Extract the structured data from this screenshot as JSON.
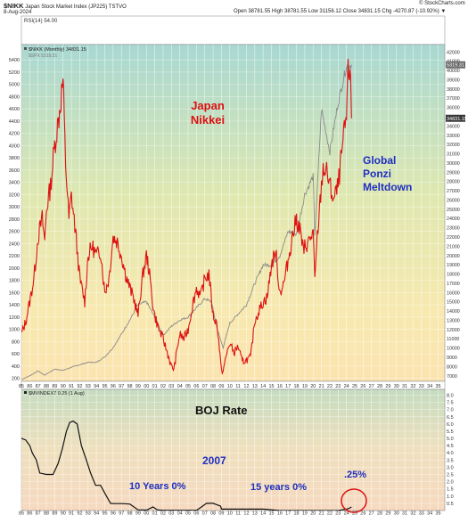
{
  "header": {
    "symbol": "$NIKK",
    "name": "Japan Stock Market Index (JP225)  TSTVO",
    "date": "8-Aug-2024",
    "ohlc": "Open 38781.55  High 38781.55  Low 31156.12  Close 34831.15  Chg -4270.87 (-10.92%) ▼",
    "watermark": "© StockCharts.com",
    "rsi_label": "RSI(14) 54.00"
  },
  "annotations": {
    "japan": "Japan",
    "nikkei": "Nikkei",
    "global": "Global",
    "ponzi": "Ponzi",
    "meltdown": "Meltdown",
    "boj_rate": "BOJ Rate",
    "year_2007": "2007",
    "ten_years": "10 Years 0%",
    "fifteen_years": "15 years 0%",
    "pct25": ".25%"
  },
  "colors": {
    "nikkei_line": "#dd1111",
    "spx_line": "#8a8a8a",
    "boj_line": "#111111",
    "annotation_red": "#dd1111",
    "annotation_blue": "#1f2fbf",
    "circle": "#dd1111"
  },
  "chart_data": [
    {
      "type": "line",
      "legend": [
        "$NIKK (Monthly) 34831.15",
        "$SPX 5319.31"
      ],
      "x_ticks": [
        "85",
        "86",
        "87",
        "88",
        "89",
        "90",
        "91",
        "92",
        "93",
        "94",
        "95",
        "96",
        "97",
        "98",
        "99",
        "00",
        "01",
        "02",
        "03",
        "04",
        "05",
        "06",
        "07",
        "08",
        "09",
        "10",
        "11",
        "12",
        "13",
        "14",
        "15",
        "16",
        "17",
        "18",
        "19",
        "20",
        "21",
        "22",
        "23",
        "24",
        "25",
        "26",
        "27",
        "28",
        "29",
        "30",
        "31",
        "32",
        "33",
        "34",
        "35"
      ],
      "x_range": [
        1985,
        2035.8
      ],
      "left_axis": {
        "ticks": [
          200,
          400,
          600,
          800,
          1000,
          1200,
          1400,
          1600,
          1800,
          2000,
          2200,
          2400,
          2600,
          2800,
          3000,
          3200,
          3400,
          3600,
          3800,
          4000,
          4200,
          4400,
          4600,
          4800,
          5000,
          5200,
          5400
        ],
        "range": [
          150,
          5650
        ]
      },
      "right_axis": {
        "ticks": [
          7000,
          8000,
          9000,
          10000,
          11000,
          12000,
          13000,
          14000,
          15000,
          16000,
          17000,
          18000,
          19000,
          20000,
          21000,
          22000,
          23000,
          24000,
          25000,
          26000,
          27000,
          28000,
          29000,
          30000,
          31000,
          32000,
          33000,
          34000,
          35000,
          36000,
          37000,
          38000,
          39000,
          40000,
          41000,
          42000
        ],
        "range": [
          6400,
          42800
        ],
        "last_value_labels": [
          "5319.31",
          "34831.15"
        ]
      },
      "series": [
        {
          "name": "$NIKK",
          "axis": "right",
          "x": [
            1985,
            1985.5,
            1986,
            1986.5,
            1987,
            1987.5,
            1987.8,
            1988,
            1988.5,
            1989,
            1989.5,
            1989.99,
            1990.3,
            1990.7,
            1991,
            1991.5,
            1992,
            1992.6,
            1993,
            1993.5,
            1994,
            1994.5,
            1995,
            1995.5,
            1996,
            1996.5,
            1997,
            1997.5,
            1998,
            1998.5,
            1999,
            1999.5,
            2000,
            2000.3,
            2000.8,
            2001,
            2001.5,
            2002,
            2002.5,
            2003,
            2003.3,
            2003.8,
            2004,
            2004.5,
            2005,
            2005.5,
            2006,
            2006.5,
            2007,
            2007.5,
            2008,
            2008.5,
            2009,
            2009.2,
            2009.8,
            2010,
            2010.5,
            2011,
            2011.5,
            2012,
            2012.5,
            2013,
            2013.5,
            2014,
            2014.5,
            2015,
            2015.5,
            2016,
            2016.5,
            2017,
            2017.5,
            2018,
            2018.5,
            2018.9,
            2019,
            2019.5,
            2020,
            2020.2,
            2020.5,
            2021,
            2021.2,
            2021.7,
            2022,
            2022.5,
            2023,
            2023.5,
            2024,
            2024.2,
            2024.5,
            2024.6
          ],
          "y": [
            11500,
            12800,
            15000,
            17500,
            22000,
            24000,
            21500,
            25000,
            27500,
            32000,
            35000,
            38957,
            30000,
            24000,
            26500,
            22500,
            17500,
            15000,
            20000,
            21000,
            20000,
            20500,
            16000,
            17500,
            22000,
            21500,
            20000,
            18000,
            16500,
            15300,
            13500,
            17500,
            20000,
            18500,
            14500,
            13500,
            12000,
            11000,
            9500,
            8000,
            7700,
            10500,
            11500,
            11000,
            12000,
            14500,
            16500,
            15500,
            17500,
            18000,
            13500,
            12500,
            7500,
            7600,
            10000,
            10500,
            9500,
            10200,
            8500,
            8700,
            9000,
            13000,
            14000,
            15000,
            15500,
            19000,
            20500,
            16000,
            17000,
            19500,
            22000,
            24000,
            22500,
            20000,
            21000,
            21500,
            22500,
            17000,
            22000,
            27500,
            29500,
            28800,
            27500,
            26000,
            27500,
            31500,
            35000,
            39500,
            40500,
            34831
          ]
        },
        {
          "name": "$SPX",
          "axis": "left",
          "x": [
            1985,
            1986,
            1987,
            1987.8,
            1988,
            1989,
            1990,
            1991,
            1992,
            1993,
            1994,
            1995,
            1996,
            1997,
            1998,
            1999,
            2000,
            2001,
            2002,
            2003,
            2004,
            2005,
            2006,
            2007,
            2007.8,
            2008.5,
            2009.2,
            2010,
            2011,
            2012,
            2013,
            2014,
            2015,
            2016,
            2017,
            2018,
            2019,
            2020,
            2020.2,
            2021,
            2022,
            2023,
            2024,
            2024.6
          ],
          "y": [
            180,
            240,
            320,
            250,
            270,
            350,
            330,
            380,
            420,
            460,
            460,
            550,
            700,
            920,
            1150,
            1400,
            1450,
            1200,
            900,
            1050,
            1150,
            1200,
            1350,
            1500,
            1450,
            1000,
            700,
            1100,
            1250,
            1400,
            1750,
            2050,
            2050,
            2200,
            2600,
            2550,
            3200,
            3500,
            2500,
            4600,
            3900,
            4700,
            5300,
            5319.31
          ]
        }
      ]
    },
    {
      "type": "line",
      "title": "BOJ Rate",
      "legend": [
        "$MVINDEX7 0.25 (1 Aug)"
      ],
      "x_range": [
        1985,
        2035.8
      ],
      "y_ticks": [
        0.5,
        1.0,
        1.5,
        2.0,
        2.5,
        3.0,
        3.5,
        4.0,
        4.5,
        5.0,
        5.5,
        6.0,
        6.5,
        7.0,
        7.5,
        8.0
      ],
      "y_range": [
        0,
        8.4
      ],
      "series": [
        {
          "name": "$MVINDEX7",
          "x": [
            1985,
            1985.5,
            1986,
            1986.3,
            1986.8,
            1987.2,
            1988,
            1988.8,
            1989.4,
            1989.9,
            1990.4,
            1990.8,
            1991.2,
            1991.7,
            1992.2,
            1992.8,
            1993.3,
            1993.9,
            1994.5,
            1995.2,
            1995.7,
            1996,
            1997,
            1998,
            1999,
            2000,
            2000.8,
            2001.3,
            2002,
            2003,
            2004,
            2005,
            2006,
            2006.6,
            2007.2,
            2008,
            2008.9,
            2009,
            2010,
            2012,
            2014,
            2016,
            2018,
            2020,
            2022,
            2023,
            2024,
            2024.3,
            2024.6
          ],
          "y": [
            5,
            4.9,
            4.5,
            4,
            3.5,
            2.6,
            2.5,
            2.5,
            3.25,
            4.25,
            5.5,
            6.1,
            6.2,
            6.0,
            4.5,
            3.5,
            2.6,
            1.75,
            1.75,
            1.0,
            0.5,
            0.48,
            0.48,
            0.45,
            0.05,
            0.03,
            0.25,
            0.05,
            0.02,
            0.02,
            0.02,
            0.02,
            0.02,
            0.25,
            0.5,
            0.5,
            0.3,
            0.1,
            0.1,
            0.1,
            0.1,
            0.0,
            0.0,
            0.0,
            0.0,
            0.0,
            0.1,
            0.15,
            0.25
          ]
        }
      ]
    }
  ]
}
